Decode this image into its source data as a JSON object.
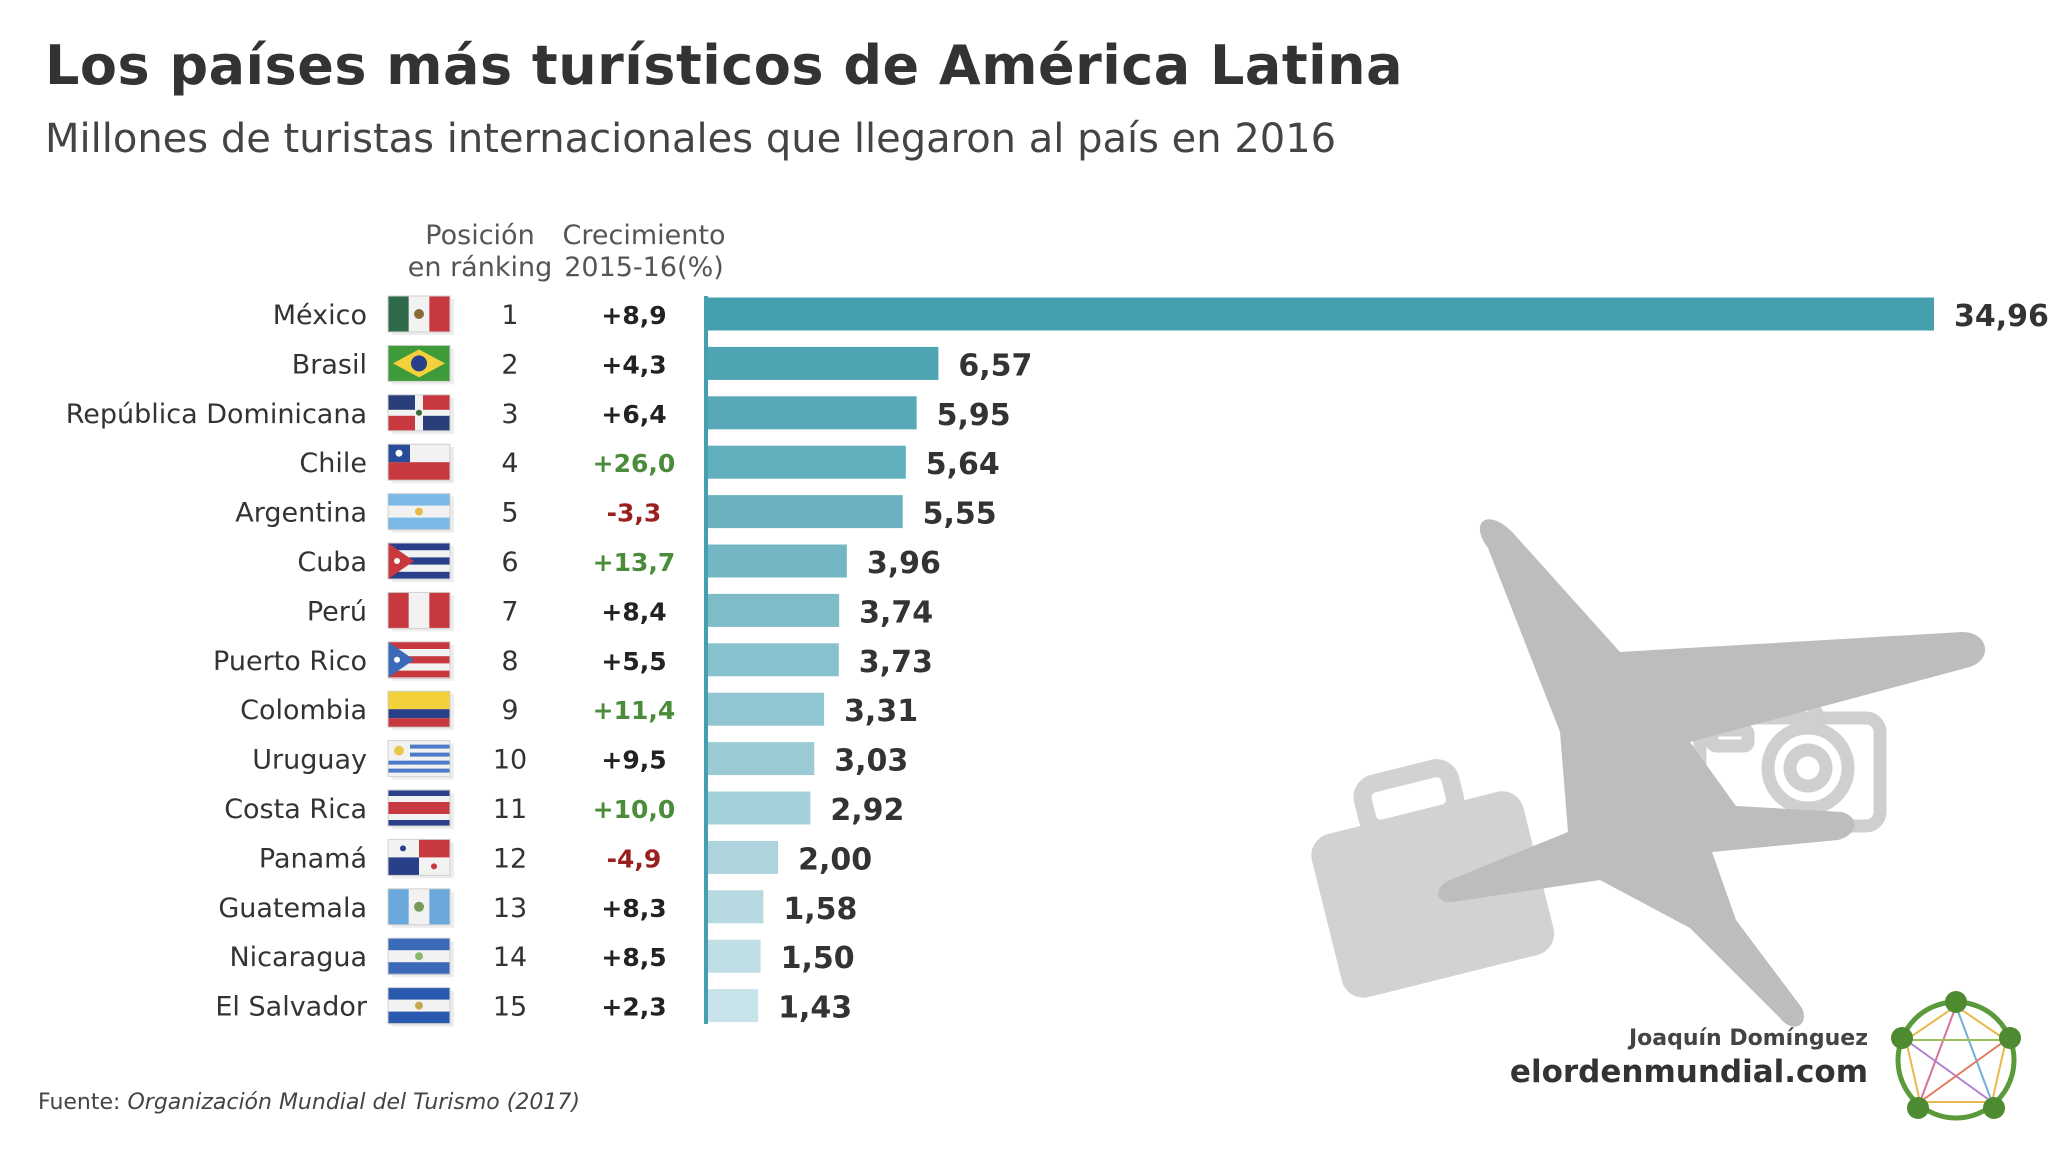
{
  "title": "Los países más turísticos de América Latina",
  "subtitle": "Millones de turistas internacionales que llegaron al país en 2016",
  "source_label": "Fuente:",
  "source_text": "Organización Mundial del Turismo (2017)",
  "author": "Joaquín Domínguez",
  "site": "elordenmundial.com",
  "chart_data": {
    "type": "bar",
    "orientation": "horizontal",
    "title": "Los países más turísticos de América Latina",
    "subtitle": "Millones de turistas internacionales que llegaron al país en 2016",
    "column_headers": {
      "rank": [
        "Posición",
        "en ránking"
      ],
      "growth": [
        "Crecimiento",
        "2015-16(%)"
      ]
    },
    "categories": [
      "México",
      "Brasil",
      "República Dominicana",
      "Chile",
      "Argentina",
      "Cuba",
      "Perú",
      "Puerto Rico",
      "Colombia",
      "Uruguay",
      "Costa Rica",
      "Panamá",
      "Guatemala",
      "Nicaragua",
      "El Salvador"
    ],
    "ranks": [
      "1",
      "2",
      "3",
      "4",
      "5",
      "6",
      "7",
      "8",
      "9",
      "10",
      "11",
      "12",
      "13",
      "14",
      "15"
    ],
    "growth": [
      "+8,9",
      "+4,3",
      "+6,4",
      "+26,0",
      "-3,3",
      "+13,7",
      "+8,4",
      "+5,5",
      "+11,4",
      "+9,5",
      "+10,0",
      "-4,9",
      "+8,3",
      "+8,5",
      "+2,3"
    ],
    "growth_colors": [
      "#222222",
      "#222222",
      "#222222",
      "#4a8c3a",
      "#9a1f1f",
      "#4a8c3a",
      "#222222",
      "#222222",
      "#4a8c3a",
      "#222222",
      "#4a8c3a",
      "#9a1f1f",
      "#222222",
      "#222222",
      "#222222"
    ],
    "values": [
      34.96,
      6.57,
      5.95,
      5.64,
      5.55,
      3.96,
      3.74,
      3.73,
      3.31,
      3.03,
      2.92,
      2.0,
      1.58,
      1.5,
      1.43
    ],
    "value_labels": [
      "34,96",
      "6,57",
      "5,95",
      "5,64",
      "5,55",
      "3,96",
      "3,74",
      "3,73",
      "3,31",
      "3,03",
      "2,92",
      "2,00",
      "1,58",
      "1,50",
      "1,43"
    ],
    "flags": [
      "mexico",
      "brazil",
      "dominican-republic",
      "chile",
      "argentina",
      "cuba",
      "peru",
      "puerto-rico",
      "colombia",
      "uruguay",
      "costa-rica",
      "panama",
      "guatemala",
      "nicaragua",
      "el-salvador"
    ],
    "bar_color_start": "#459faf",
    "bar_color_end": "#c9e3ea",
    "xlim": [
      0,
      35
    ]
  }
}
